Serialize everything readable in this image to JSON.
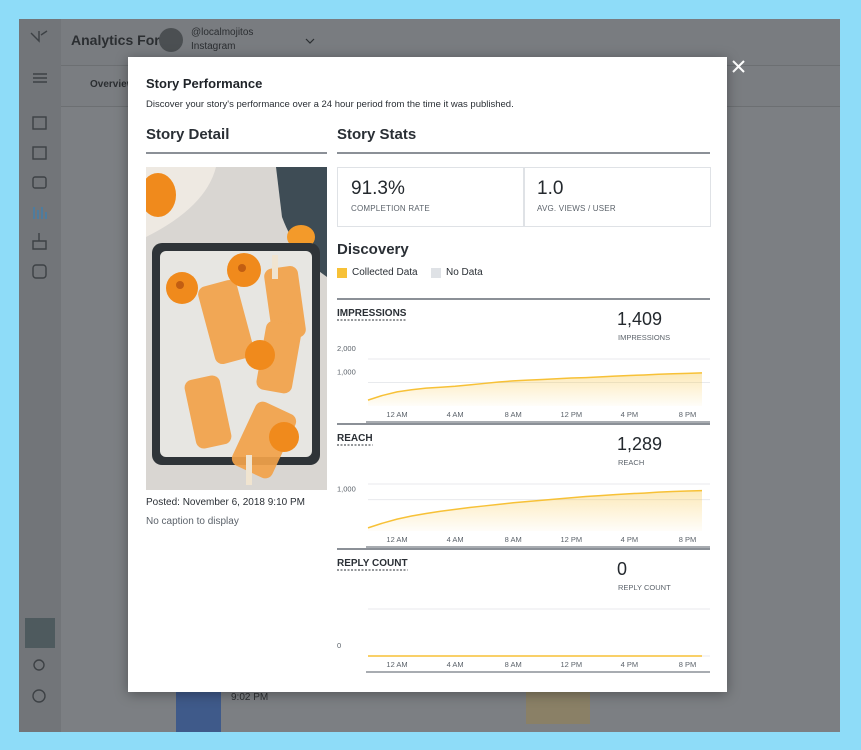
{
  "app": {
    "title": "Analytics For",
    "account": "@localmojitos",
    "platform": "Instagram",
    "tab": "Overview",
    "list_time": "9:02 PM"
  },
  "modal": {
    "title": "Story Performance",
    "subtitle": "Discover your story's performance over a 24 hour period from the time it was published.",
    "detail_heading": "Story Detail",
    "stats_heading": "Story Stats",
    "posted": "Posted: November 6, 2018 9:10 PM",
    "caption": "No caption to display",
    "stats": [
      {
        "value": "91.3%",
        "label": "COMPLETION RATE"
      },
      {
        "value": "1.0",
        "label": "AVG. VIEWS / USER"
      }
    ],
    "discovery_heading": "Discovery",
    "legend": [
      {
        "name": "Collected Data",
        "color": "#f7c137"
      },
      {
        "name": "No Data",
        "color": "#dfe2e6"
      }
    ]
  },
  "chart_data": [
    {
      "type": "area",
      "title": "IMPRESSIONS",
      "total": "1,409",
      "total_label": "IMPRESSIONS",
      "categories": [
        null,
        null,
        "12 AM",
        null,
        null,
        null,
        "4 AM",
        null,
        null,
        null,
        "8 AM",
        null,
        null,
        null,
        "12 PM",
        null,
        null,
        null,
        "4 PM",
        null,
        null,
        null,
        "8 PM",
        null
      ],
      "values": [
        250,
        450,
        600,
        690,
        760,
        800,
        840,
        900,
        960,
        1020,
        1070,
        1100,
        1130,
        1160,
        1190,
        1210,
        1240,
        1270,
        1300,
        1320,
        1350,
        1370,
        1390,
        1409
      ],
      "color": "#f7c137",
      "ylim": [
        0,
        2000
      ],
      "yticks": [
        {
          "value": 1000,
          "label": "1,000"
        },
        {
          "value": 2000,
          "label": "2,000"
        }
      ]
    },
    {
      "type": "area",
      "title": "REACH",
      "total": "1,289",
      "total_label": "REACH",
      "categories": [
        null,
        null,
        "12 AM",
        null,
        null,
        null,
        "4 AM",
        null,
        null,
        null,
        "8 AM",
        null,
        null,
        null,
        "12 PM",
        null,
        null,
        null,
        "4 PM",
        null,
        null,
        null,
        "8 PM",
        null
      ],
      "values": [
        100,
        250,
        380,
        480,
        560,
        630,
        690,
        750,
        800,
        850,
        900,
        940,
        980,
        1020,
        1060,
        1100,
        1130,
        1160,
        1190,
        1210,
        1240,
        1260,
        1275,
        1289
      ],
      "color": "#f7c137",
      "ylim": [
        0,
        1500
      ],
      "yticks": [
        {
          "value": 1000,
          "label": "1,000"
        }
      ]
    },
    {
      "type": "area",
      "title": "REPLY COUNT",
      "total": "0",
      "total_label": "REPLY COUNT",
      "categories": [
        null,
        null,
        "12 AM",
        null,
        null,
        null,
        "4 AM",
        null,
        null,
        null,
        "8 AM",
        null,
        null,
        null,
        "12 PM",
        null,
        null,
        null,
        "4 PM",
        null,
        null,
        null,
        "8 PM",
        null
      ],
      "values": [
        0,
        0,
        0,
        0,
        0,
        0,
        0,
        0,
        0,
        0,
        0,
        0,
        0,
        0,
        0,
        0,
        0,
        0,
        0,
        0,
        0,
        0,
        0,
        0
      ],
      "color": "#f7c137",
      "ylim": [
        0,
        1
      ],
      "yticks": [
        0
      ]
    }
  ]
}
